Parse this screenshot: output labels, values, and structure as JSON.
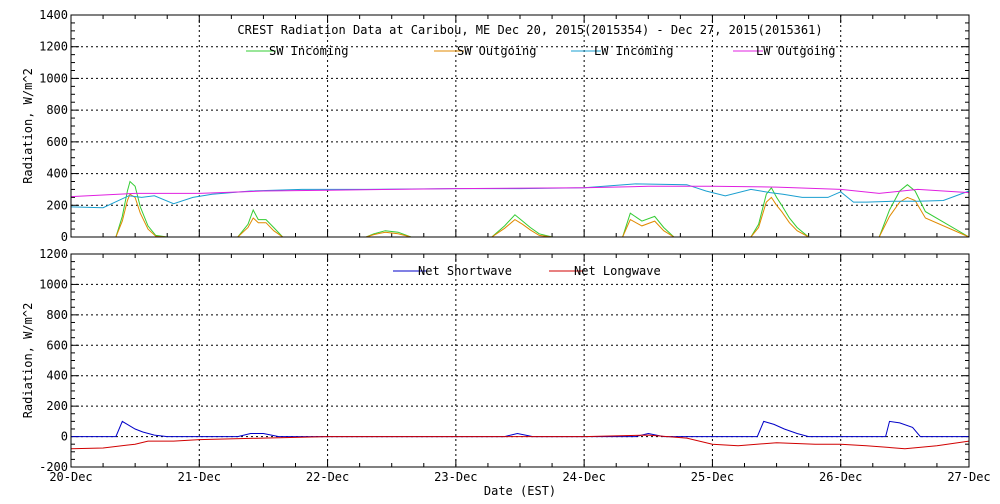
{
  "chart_data": [
    {
      "type": "line",
      "title": "CREST Radiation Data at Caribou, ME   Dec 20, 2015(2015354) - Dec 27, 2015(2015361)",
      "ylabel": "Radiation, W/m^2",
      "xlabel": "",
      "ylim": [
        0,
        1400
      ],
      "yticks": [
        0,
        200,
        400,
        600,
        800,
        1000,
        1200,
        1400
      ],
      "xlim": [
        0,
        7
      ],
      "grid": true,
      "legend_position": "top",
      "x_tick_labels": [
        "20-Dec",
        "21-Dec",
        "22-Dec",
        "23-Dec",
        "24-Dec",
        "25-Dec",
        "26-Dec",
        "27-Dec"
      ],
      "series": [
        {
          "name": "SW Incoming",
          "color": "#33cc33",
          "x": [
            0,
            0.35,
            0.4,
            0.44,
            0.46,
            0.5,
            0.54,
            0.6,
            0.66,
            0.75,
            1.3,
            1.38,
            1.42,
            1.46,
            1.52,
            1.58,
            1.65,
            2.3,
            2.36,
            2.45,
            2.55,
            2.65,
            3.0,
            3.28,
            3.38,
            3.46,
            3.52,
            3.58,
            3.65,
            3.75,
            4.3,
            4.36,
            4.45,
            4.55,
            4.62,
            4.7,
            5.3,
            5.36,
            5.42,
            5.46,
            5.5,
            5.54,
            5.6,
            5.66,
            5.75,
            6.3,
            6.38,
            6.46,
            6.52,
            6.58,
            6.66,
            7.0
          ],
          "values": [
            0,
            0,
            130,
            290,
            350,
            320,
            190,
            70,
            10,
            0,
            0,
            80,
            170,
            110,
            110,
            60,
            0,
            0,
            20,
            40,
            30,
            0,
            0,
            0,
            70,
            140,
            100,
            60,
            20,
            0,
            0,
            150,
            100,
            130,
            60,
            0,
            0,
            80,
            270,
            310,
            250,
            200,
            120,
            60,
            0,
            0,
            170,
            290,
            330,
            290,
            160,
            0
          ]
        },
        {
          "name": "SW Outgoing",
          "color": "#e08a00",
          "x": [
            0,
            0.35,
            0.4,
            0.44,
            0.46,
            0.5,
            0.54,
            0.6,
            0.66,
            0.75,
            1.3,
            1.38,
            1.42,
            1.46,
            1.52,
            1.58,
            1.65,
            2.3,
            2.36,
            2.45,
            2.55,
            2.65,
            3.0,
            3.28,
            3.38,
            3.46,
            3.52,
            3.58,
            3.65,
            3.75,
            4.3,
            4.36,
            4.45,
            4.55,
            4.62,
            4.7,
            5.3,
            5.36,
            5.42,
            5.46,
            5.5,
            5.54,
            5.6,
            5.66,
            5.75,
            6.3,
            6.38,
            6.46,
            6.52,
            6.58,
            6.66,
            7.0
          ],
          "values": [
            0,
            0,
            100,
            230,
            270,
            250,
            150,
            50,
            5,
            0,
            0,
            60,
            120,
            90,
            90,
            40,
            0,
            0,
            15,
            30,
            20,
            0,
            0,
            0,
            55,
            110,
            80,
            45,
            10,
            0,
            0,
            110,
            70,
            100,
            40,
            0,
            0,
            60,
            220,
            250,
            200,
            160,
            90,
            40,
            0,
            0,
            130,
            220,
            250,
            230,
            120,
            0
          ]
        },
        {
          "name": "LW Incoming",
          "color": "#1a9fd0",
          "x": [
            0,
            0.25,
            0.45,
            0.55,
            0.65,
            0.8,
            0.95,
            1.1,
            1.4,
            1.8,
            2.3,
            3.0,
            3.5,
            4.0,
            4.4,
            4.8,
            4.95,
            5.1,
            5.3,
            5.45,
            5.55,
            5.7,
            5.9,
            6.0,
            6.1,
            6.2,
            6.4,
            6.6,
            6.8,
            7.0
          ],
          "values": [
            190,
            185,
            260,
            250,
            260,
            210,
            250,
            270,
            290,
            300,
            300,
            305,
            305,
            310,
            335,
            330,
            290,
            260,
            300,
            280,
            270,
            250,
            250,
            285,
            220,
            220,
            225,
            225,
            230,
            290
          ]
        },
        {
          "name": "LW Outgoing",
          "color": "#e020e0",
          "x": [
            0,
            0.5,
            1.0,
            1.5,
            2.0,
            3.0,
            4.0,
            4.5,
            5.0,
            5.5,
            6.0,
            6.3,
            6.6,
            7.0
          ],
          "values": [
            255,
            275,
            275,
            290,
            295,
            305,
            310,
            320,
            320,
            315,
            300,
            275,
            300,
            280
          ]
        }
      ]
    },
    {
      "type": "line",
      "title": "",
      "ylabel": "Radiation, W/m^2",
      "xlabel": "Date (EST)",
      "ylim": [
        -200,
        1200
      ],
      "yticks": [
        -200,
        0,
        200,
        400,
        600,
        800,
        1000,
        1200
      ],
      "xlim": [
        0,
        7
      ],
      "grid": true,
      "legend_position": "top",
      "x_tick_labels": [
        "20-Dec",
        "21-Dec",
        "22-Dec",
        "23-Dec",
        "24-Dec",
        "25-Dec",
        "26-Dec",
        "27-Dec"
      ],
      "series": [
        {
          "name": "Net Shortwave",
          "color": "#0000c8",
          "x": [
            0,
            0.35,
            0.4,
            0.44,
            0.5,
            0.56,
            0.65,
            0.75,
            1.3,
            1.4,
            1.5,
            1.62,
            3.38,
            3.48,
            3.6,
            4.4,
            4.5,
            4.62,
            5.35,
            5.4,
            5.48,
            5.56,
            5.66,
            5.75,
            6.35,
            6.38,
            6.46,
            6.56,
            6.62,
            7.0
          ],
          "values": [
            0,
            0,
            100,
            80,
            50,
            30,
            10,
            0,
            0,
            20,
            20,
            0,
            0,
            20,
            0,
            0,
            20,
            0,
            0,
            100,
            80,
            50,
            20,
            0,
            0,
            100,
            90,
            60,
            0,
            0
          ]
        },
        {
          "name": "Net Longwave",
          "color": "#d00000",
          "x": [
            0,
            0.25,
            0.5,
            0.6,
            0.8,
            1.0,
            1.5,
            2.0,
            3.0,
            4.0,
            4.5,
            4.8,
            5.0,
            5.2,
            5.5,
            5.8,
            6.0,
            6.2,
            6.5,
            6.75,
            7.0
          ],
          "values": [
            -80,
            -75,
            -50,
            -30,
            -30,
            -20,
            -10,
            0,
            0,
            0,
            10,
            -10,
            -50,
            -60,
            -40,
            -50,
            -50,
            -60,
            -80,
            -60,
            -30
          ]
        }
      ]
    }
  ]
}
